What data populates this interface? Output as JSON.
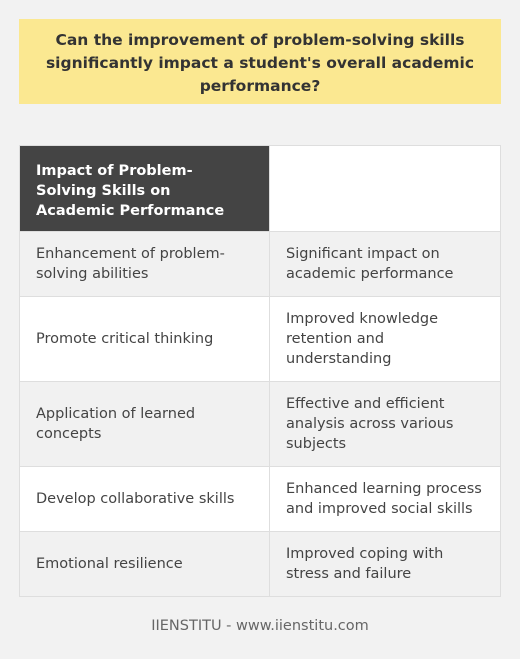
{
  "question": "Can the improvement of problem-solving skills significantly impact a student's overall academic performance?",
  "table": {
    "header": [
      "Impact of Problem-Solving Skills on Academic Performance",
      ""
    ],
    "rows": [
      [
        "Enhancement of problem-solving abilities",
        "Significant impact on academic performance"
      ],
      [
        "Promote critical thinking",
        "Improved knowledge retention and understanding"
      ],
      [
        "Application of learned concepts",
        "Effective and efficient analysis across various subjects"
      ],
      [
        "Develop collaborative skills",
        "Enhanced learning process and improved social skills"
      ],
      [
        "Emotional resilience",
        "Improved coping with stress and failure"
      ]
    ]
  },
  "footer": "IIENSTITU - www.iienstitu.com",
  "colors": {
    "question_bg": "#fbe891",
    "header_bg": "#444444",
    "row_odd_bg": "#f1f1f1",
    "row_even_bg": "#ffffff",
    "page_bg": "#f2f2f2"
  }
}
